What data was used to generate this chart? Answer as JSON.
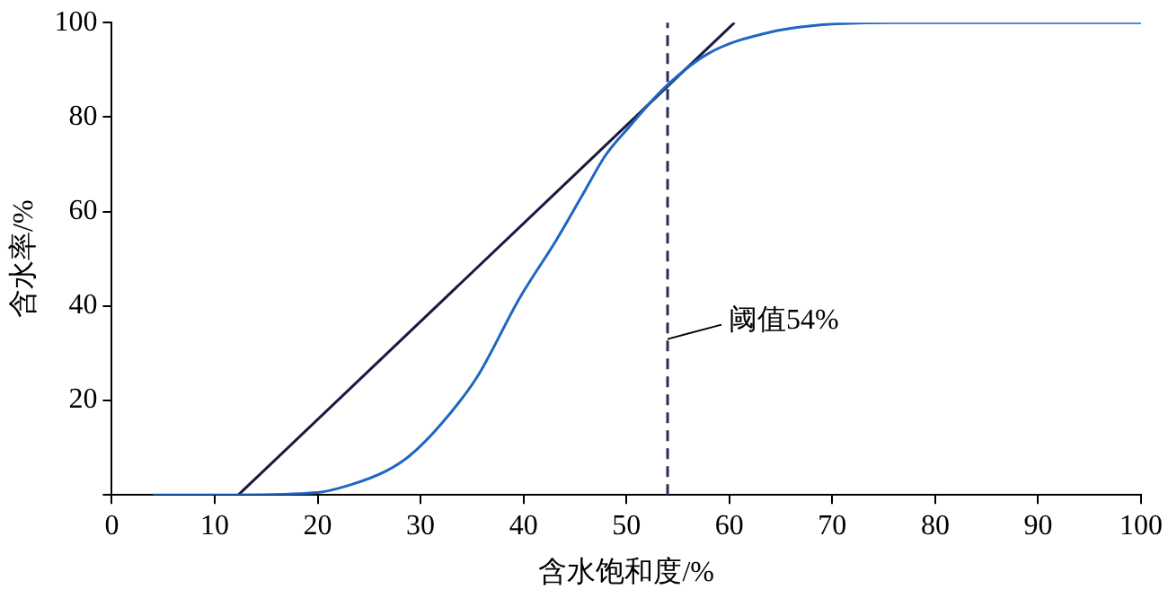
{
  "chart_data": {
    "type": "line",
    "xlabel": "含水饱和度/%",
    "ylabel": "含水率/%",
    "xlim": [
      0,
      100
    ],
    "ylim": [
      0,
      100
    ],
    "xticks": [
      0,
      10,
      20,
      30,
      40,
      50,
      60,
      70,
      80,
      90,
      100
    ],
    "yticks": [
      {
        "value": 0,
        "label": null
      },
      20,
      40,
      60,
      80,
      100
    ],
    "grid": false,
    "legend": false,
    "marker": "none",
    "line_style": "solid",
    "series": [
      {
        "color": "#1f66c0",
        "x": [
          4,
          12,
          20,
          23,
          26.6,
          29,
          32,
          35.5,
          39.6,
          43.2,
          45.6,
          48,
          50.3,
          53.6,
          58,
          64,
          70,
          76,
          85,
          100
        ],
        "values": [
          0,
          0,
          0.5,
          2,
          5,
          8.4,
          15,
          25,
          41.6,
          54,
          63,
          72,
          78,
          86,
          93.5,
          98,
          99.7,
          100,
          100,
          100
        ]
      },
      {
        "color": "#1a1a40",
        "x": [
          12.3,
          60.5
        ],
        "values": [
          0,
          100
        ]
      }
    ],
    "ref_lines": [
      {
        "axis": "x",
        "value": 54,
        "label": "阈值54%",
        "color": "#2a2a60",
        "line_style": "dashed"
      }
    ]
  }
}
